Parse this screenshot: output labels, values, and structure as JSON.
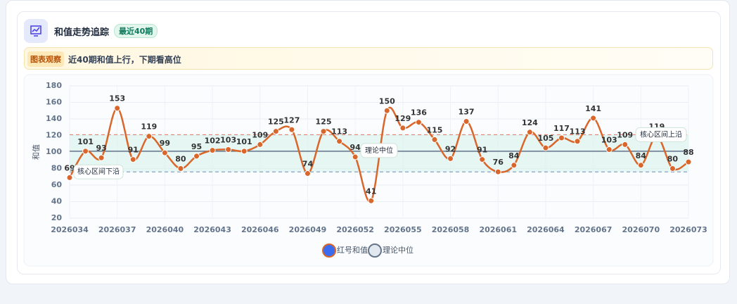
{
  "header": {
    "title": "和值走势追踪",
    "badge": "最近40期"
  },
  "insight": {
    "label": "图表观察",
    "text": "近40期和值上行，下期看高位"
  },
  "chart_data": {
    "type": "line",
    "categories": [
      "2026034",
      null,
      null,
      "2026037",
      null,
      null,
      "2026040",
      null,
      null,
      "2026043",
      null,
      null,
      "2026046",
      null,
      null,
      "2026049",
      null,
      null,
      "2026052",
      null,
      null,
      "2026055",
      null,
      null,
      "2026058",
      null,
      null,
      "2026061",
      null,
      null,
      "2026064",
      null,
      null,
      "2026067",
      null,
      null,
      "2026070",
      null,
      null,
      "2026073"
    ],
    "series": [
      {
        "name": "红号和值",
        "color": "#d9662a",
        "values": [
          69,
          101,
          93,
          153,
          91,
          119,
          99,
          80,
          95,
          102,
          103,
          101,
          109,
          125,
          127,
          74,
          125,
          113,
          94,
          41,
          150,
          129,
          136,
          115,
          92,
          137,
          91,
          76,
          84,
          124,
          105,
          117,
          113,
          141,
          103,
          109,
          84,
          119,
          80,
          88
        ]
      }
    ],
    "reference_line": {
      "name": "理论中位",
      "value": 101,
      "color": "#64748b"
    },
    "band": {
      "lower": 76,
      "upper": 121,
      "lower_label": "核心区间下沿",
      "upper_label": "核心区间上沿"
    },
    "ylabel": "和值",
    "ylim": [
      20,
      180
    ],
    "yticks": [
      20,
      40,
      60,
      80,
      100,
      120,
      140,
      160,
      180
    ],
    "grid": true
  }
}
